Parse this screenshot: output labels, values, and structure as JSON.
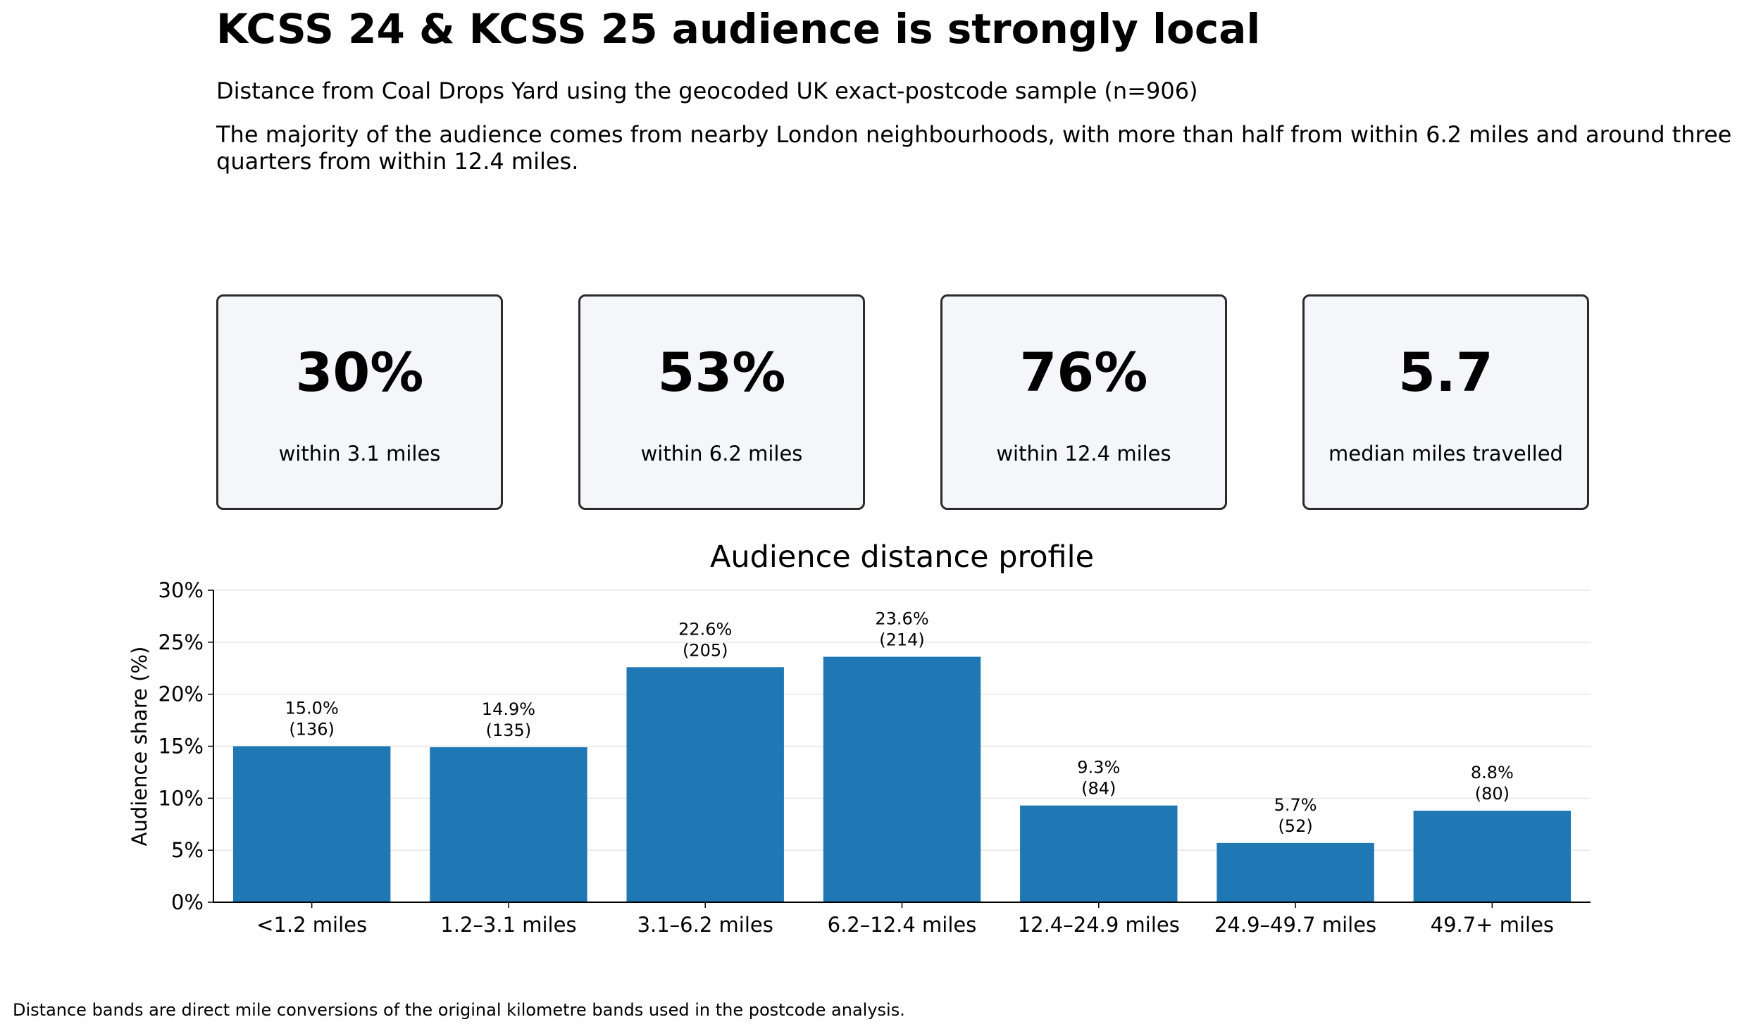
{
  "header": {
    "title": "KCSS 24 & KCSS 25 audience is strongly local",
    "subtitle": "Distance from Coal Drops Yard using the geocoded UK exact-postcode sample (n=906)",
    "description": "The majority of the audience comes from nearby London neighbourhoods, with more than half from within 6.2 miles and around three quarters from within 12.4 miles."
  },
  "kpis": [
    {
      "value": "30%",
      "label": "within 3.1 miles"
    },
    {
      "value": "53%",
      "label": "within 6.2 miles"
    },
    {
      "value": "76%",
      "label": "within 12.4 miles"
    },
    {
      "value": "5.7",
      "label": "median miles travelled"
    }
  ],
  "colors": {
    "bar": "#1f77b4",
    "card_bg": "#f4f6fa",
    "card_border": "#2b2b2b",
    "grid": "#e6e6e6"
  },
  "chart_data": {
    "type": "bar",
    "title": "Audience distance profile",
    "xlabel": "",
    "ylabel": "Audience share (%)",
    "ylim": [
      0,
      30
    ],
    "yticks": [
      0,
      5,
      10,
      15,
      20,
      25,
      30
    ],
    "ytick_labels": [
      "0%",
      "5%",
      "10%",
      "15%",
      "20%",
      "25%",
      "30%"
    ],
    "grid": true,
    "categories": [
      "<1.2 miles",
      "1.2–3.1 miles",
      "3.1–6.2 miles",
      "6.2–12.4 miles",
      "12.4–24.9 miles",
      "24.9–49.7 miles",
      "49.7+ miles"
    ],
    "values": [
      15.0,
      14.9,
      22.6,
      23.6,
      9.3,
      5.7,
      8.8
    ],
    "value_labels": [
      "15.0%",
      "14.9%",
      "22.6%",
      "23.6%",
      "9.3%",
      "5.7%",
      "8.8%"
    ],
    "count_labels": [
      "(136)",
      "(135)",
      "(205)",
      "(214)",
      "(84)",
      "(52)",
      "(80)"
    ]
  },
  "footnote": "Distance bands are direct mile conversions of the original kilometre bands used in the postcode analysis."
}
